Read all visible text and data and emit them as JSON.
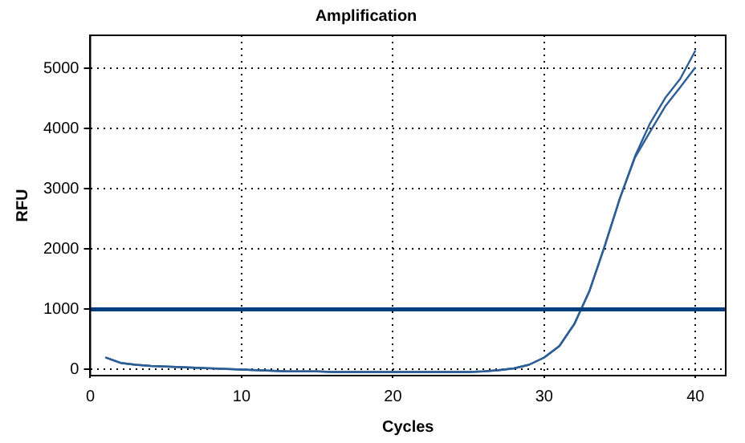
{
  "chart_data": {
    "type": "line",
    "title": "Amplification",
    "xlabel": "Cycles",
    "ylabel": "RFU",
    "x": [
      1,
      2,
      3,
      4,
      5,
      6,
      7,
      8,
      9,
      10,
      11,
      12,
      13,
      14,
      15,
      16,
      17,
      18,
      19,
      20,
      21,
      22,
      23,
      24,
      25,
      26,
      27,
      28,
      29,
      30,
      31,
      32,
      33,
      34,
      35,
      36,
      37,
      38,
      39,
      40
    ],
    "series": [
      {
        "color": "#2d5e96",
        "values": [
          200,
          110,
          80,
          60,
          50,
          40,
          30,
          20,
          10,
          0,
          -10,
          -20,
          -30,
          -30,
          -30,
          -40,
          -40,
          -40,
          -40,
          -40,
          -40,
          -40,
          -40,
          -40,
          -40,
          -30,
          -10,
          20,
          80,
          200,
          390,
          760,
          1310,
          2050,
          2840,
          3540,
          4090,
          4510,
          4830,
          5300
        ]
      },
      {
        "color": "#2d5e96",
        "values": [
          200,
          110,
          80,
          60,
          50,
          40,
          30,
          20,
          10,
          0,
          -10,
          -20,
          -30,
          -30,
          -30,
          -40,
          -40,
          -40,
          -40,
          -40,
          -40,
          -40,
          -40,
          -40,
          -40,
          -30,
          -10,
          20,
          80,
          200,
          390,
          760,
          1310,
          2050,
          2840,
          3520,
          3950,
          4370,
          4690,
          5020
        ]
      }
    ],
    "xlim": [
      0,
      42
    ],
    "xticks": [
      0,
      10,
      20,
      30,
      40
    ],
    "ylim": [
      -100,
      5550
    ],
    "yticks": [
      0,
      1000,
      2000,
      3000,
      4000,
      5000
    ],
    "ref_lines": [
      {
        "axis": "y",
        "value": 1000,
        "color": "#004080"
      }
    ],
    "grid": true,
    "legend": false,
    "marker": "none",
    "line_style": "solid"
  }
}
